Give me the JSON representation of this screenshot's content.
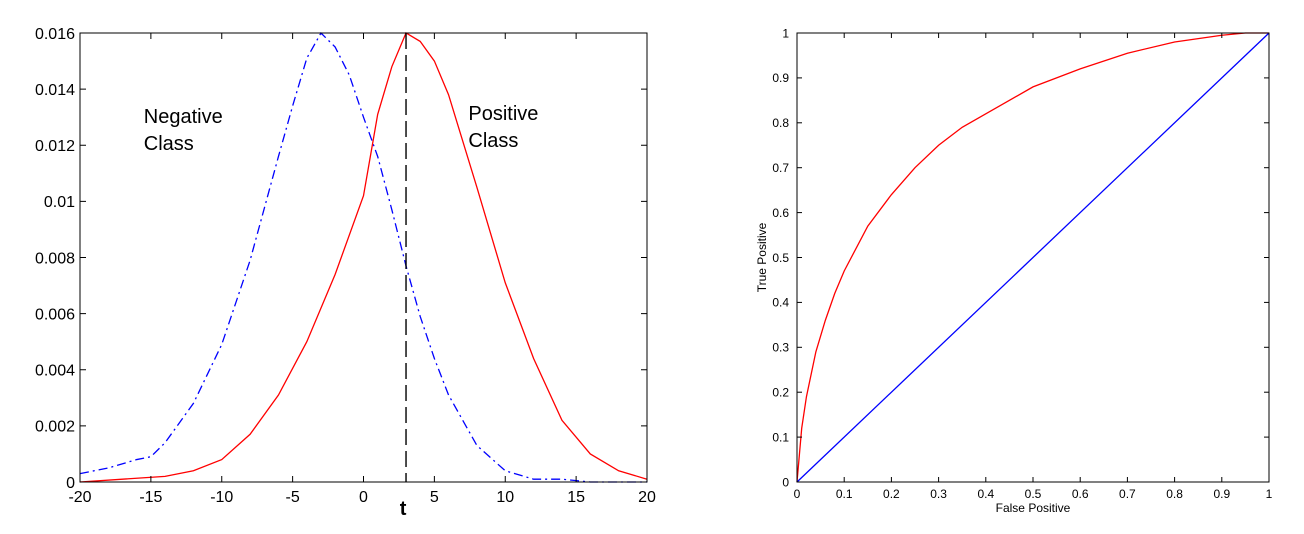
{
  "chart_data": [
    {
      "type": "line",
      "title": "",
      "xlabel": "",
      "ylabel": "",
      "xlim": [
        -20,
        20
      ],
      "ylim": [
        0,
        0.016
      ],
      "x_ticks": [
        -20,
        -15,
        -10,
        -5,
        0,
        5,
        10,
        15,
        20
      ],
      "y_ticks": [
        0,
        0.002,
        0.004,
        0.006,
        0.008,
        0.01,
        0.012,
        0.014,
        0.016
      ],
      "x_tick_labels": [
        "-20",
        "-15",
        "-10",
        "-5",
        "0",
        "5",
        "10",
        "15",
        "20"
      ],
      "y_tick_labels": [
        "0",
        "0.002",
        "0.004",
        "0.006",
        "0.008",
        "0.01",
        "0.012",
        "0.014",
        "0.016"
      ],
      "grid": false,
      "series": [
        {
          "color": "#0000ff",
          "style": "dash-dot",
          "x": [
            -20,
            -18,
            -16,
            -15,
            -14,
            -12,
            -10,
            -8,
            -6,
            -5,
            -4,
            -3,
            -2,
            -1,
            0,
            1,
            2,
            3,
            4,
            5,
            6,
            8,
            10,
            12,
            14,
            16,
            18,
            20
          ],
          "y": [
            0.0003,
            0.0005,
            0.0008,
            0.0009,
            0.0014,
            0.0028,
            0.0049,
            0.0079,
            0.0116,
            0.0134,
            0.0151,
            0.016,
            0.0155,
            0.0145,
            0.013,
            0.0116,
            0.0097,
            0.0077,
            0.0059,
            0.0044,
            0.0031,
            0.0013,
            0.0004,
            0.0001,
            0.0001,
            0.0,
            0.0,
            0.0
          ]
        },
        {
          "color": "#ff0000",
          "style": "solid",
          "x": [
            -20,
            -17,
            -14,
            -12,
            -10,
            -8,
            -6,
            -4,
            -2,
            0,
            1,
            2,
            3,
            4,
            5,
            6,
            8,
            10,
            12,
            14,
            16,
            18,
            20
          ],
          "y": [
            0.0,
            0.0001,
            0.0002,
            0.0004,
            0.0008,
            0.0017,
            0.0031,
            0.005,
            0.0074,
            0.0102,
            0.0131,
            0.0148,
            0.016,
            0.0157,
            0.015,
            0.0138,
            0.0105,
            0.0071,
            0.0044,
            0.0022,
            0.001,
            0.0004,
            0.0001
          ]
        }
      ],
      "threshold": {
        "x": 3,
        "label": "t",
        "color": "#000000",
        "style": "dashed"
      },
      "annotations": [
        {
          "lines": [
            "Negative",
            "Class"
          ],
          "x": -15.5,
          "y": 0.0128
        },
        {
          "lines": [
            "Positive",
            "Class"
          ],
          "x": 7.4,
          "y": 0.0129
        }
      ]
    },
    {
      "type": "line",
      "title": "",
      "xlabel": "False Positive",
      "ylabel": "True Positive",
      "xlim": [
        0,
        1
      ],
      "ylim": [
        0,
        1
      ],
      "x_ticks": [
        0,
        0.1,
        0.2,
        0.3,
        0.4,
        0.5,
        0.6,
        0.7,
        0.8,
        0.9,
        1
      ],
      "y_ticks": [
        0,
        0.1,
        0.2,
        0.3,
        0.4,
        0.5,
        0.6,
        0.7,
        0.8,
        0.9,
        1
      ],
      "x_tick_labels": [
        "0",
        "0.1",
        "0.2",
        "0.3",
        "0.4",
        "0.5",
        "0.6",
        "0.7",
        "0.8",
        "0.9",
        "1"
      ],
      "y_tick_labels": [
        "0",
        "0.1",
        "0.2",
        "0.3",
        "0.4",
        "0.5",
        "0.6",
        "0.7",
        "0.8",
        "0.9",
        "1"
      ],
      "grid": false,
      "series": [
        {
          "color": "#ff0000",
          "style": "solid",
          "x": [
            0,
            0.005,
            0.01,
            0.02,
            0.04,
            0.06,
            0.08,
            0.1,
            0.15,
            0.2,
            0.25,
            0.3,
            0.35,
            0.4,
            0.5,
            0.6,
            0.7,
            0.8,
            0.9,
            0.95,
            1.0
          ],
          "y": [
            0.0,
            0.06,
            0.12,
            0.19,
            0.29,
            0.36,
            0.42,
            0.47,
            0.57,
            0.64,
            0.7,
            0.75,
            0.79,
            0.82,
            0.88,
            0.92,
            0.955,
            0.98,
            0.995,
            1.0,
            1.0
          ]
        },
        {
          "color": "#0000ff",
          "style": "solid",
          "x": [
            0,
            1
          ],
          "y": [
            0,
            1
          ]
        }
      ]
    }
  ]
}
